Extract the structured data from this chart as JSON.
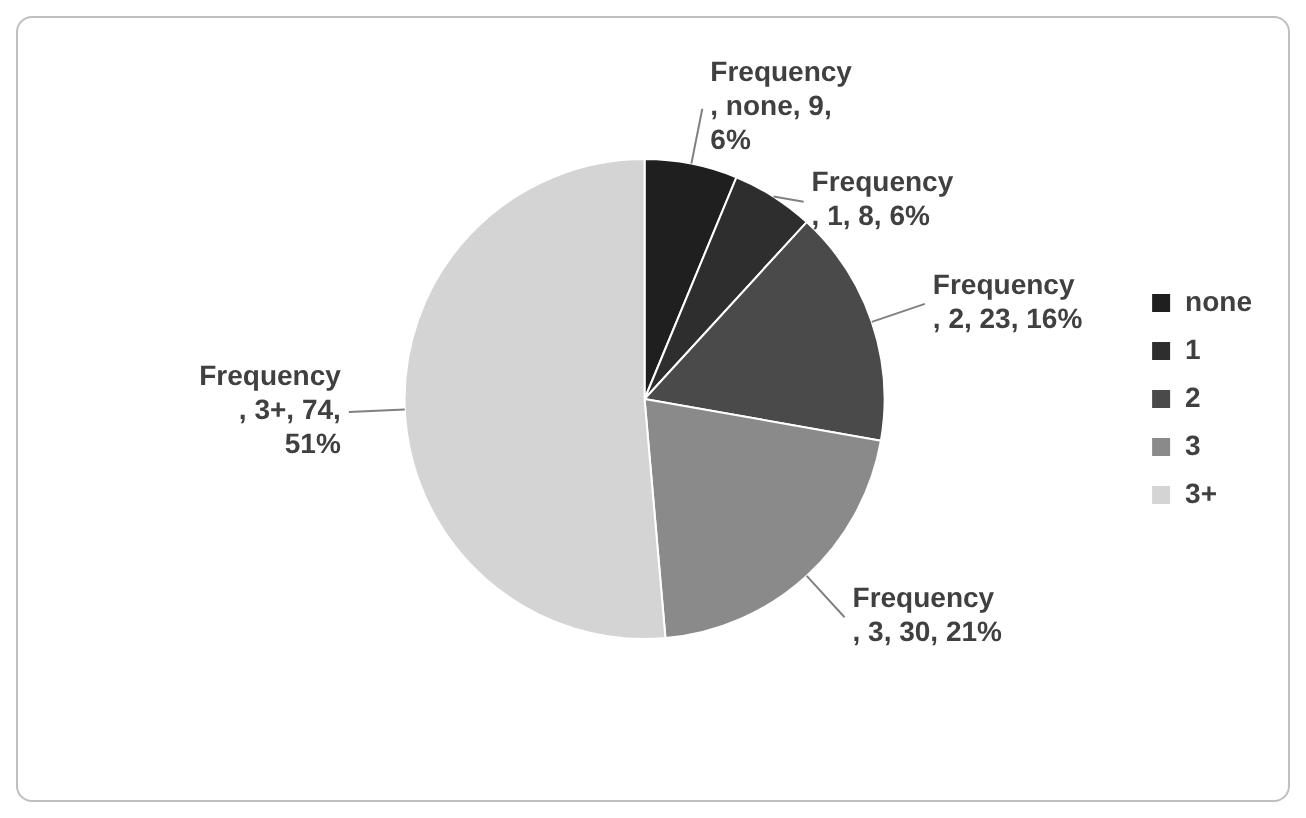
{
  "chart_data": {
    "type": "pie",
    "categories": [
      "none",
      "1",
      "2",
      "3",
      "3+"
    ],
    "values": [
      9,
      8,
      23,
      30,
      74
    ],
    "colors": [
      "#1f1f1f",
      "#2e2e2e",
      "#4a4a4a",
      "#8a8a8a",
      "#d4d4d4"
    ],
    "value_labels": [
      "Frequency, none, 9, 6%",
      "Frequency, 1, 8, 6%",
      "Frequency, 2, 23, 16%",
      "Frequency, 3, 30, 21%",
      "Frequency, 3+, 74, 51%"
    ],
    "legend": "right"
  }
}
